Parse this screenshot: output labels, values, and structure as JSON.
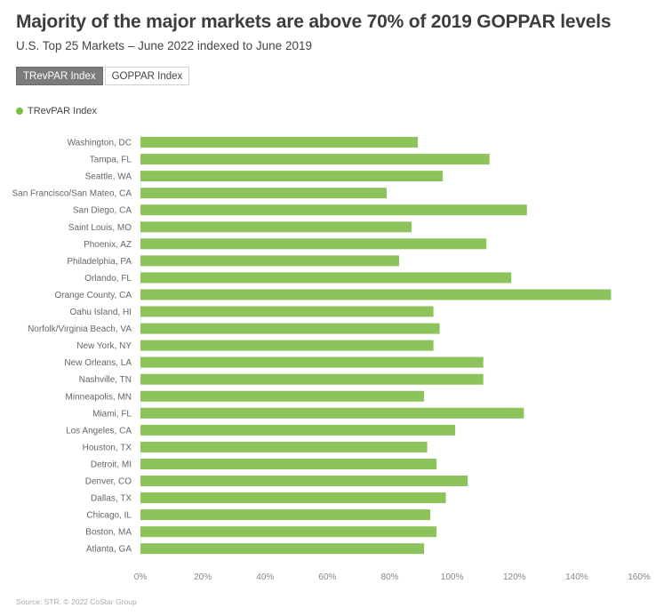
{
  "header": {
    "title": "Majority of the major markets are above 70% of 2019 GOPPAR levels",
    "subtitle": "U.S. Top 25 Markets – June 2022 indexed to June 2019"
  },
  "toggle": {
    "buttons": [
      {
        "label": "TRevPAR Index",
        "active": true
      },
      {
        "label": "GOPPAR Index",
        "active": false
      }
    ]
  },
  "footer": {
    "source": "Source: STR. © 2022 CoStar Group"
  },
  "colors": {
    "bar": "#8dc35b",
    "legend": "#7cbf45",
    "axis_text": "#888888",
    "label_text": "#666666"
  },
  "chart_data": {
    "type": "bar",
    "orientation": "horizontal",
    "legend": [
      "TRevPAR Index"
    ],
    "xlim": [
      0,
      160
    ],
    "ticks": [
      0,
      20,
      40,
      60,
      80,
      100,
      120,
      140,
      160
    ],
    "tick_labels": [
      "0%",
      "20%",
      "40%",
      "60%",
      "80%",
      "100%",
      "120%",
      "140%",
      "160%"
    ],
    "categories": [
      "Washington, DC",
      "Tampa, FL",
      "Seattle, WA",
      "San Francisco/San Mateo, CA",
      "San Diego, CA",
      "Saint Louis, MO",
      "Phoenix, AZ",
      "Philadelphia, PA",
      "Orlando, FL",
      "Orange County, CA",
      "Oahu Island, HI",
      "Norfolk/Virginia Beach, VA",
      "New York, NY",
      "New Orleans, LA",
      "Nashville, TN",
      "Minneapolis, MN",
      "Miami, FL",
      "Los Angeles, CA",
      "Houston, TX",
      "Detroit, MI",
      "Denver, CO",
      "Dallas, TX",
      "Chicago, IL",
      "Boston, MA",
      "Atlanta, GA"
    ],
    "values": [
      89,
      112,
      97,
      79,
      124,
      87,
      111,
      83,
      119,
      151,
      94,
      96,
      94,
      110,
      110,
      91,
      123,
      101,
      92,
      95,
      105,
      98,
      93,
      95,
      91
    ]
  }
}
